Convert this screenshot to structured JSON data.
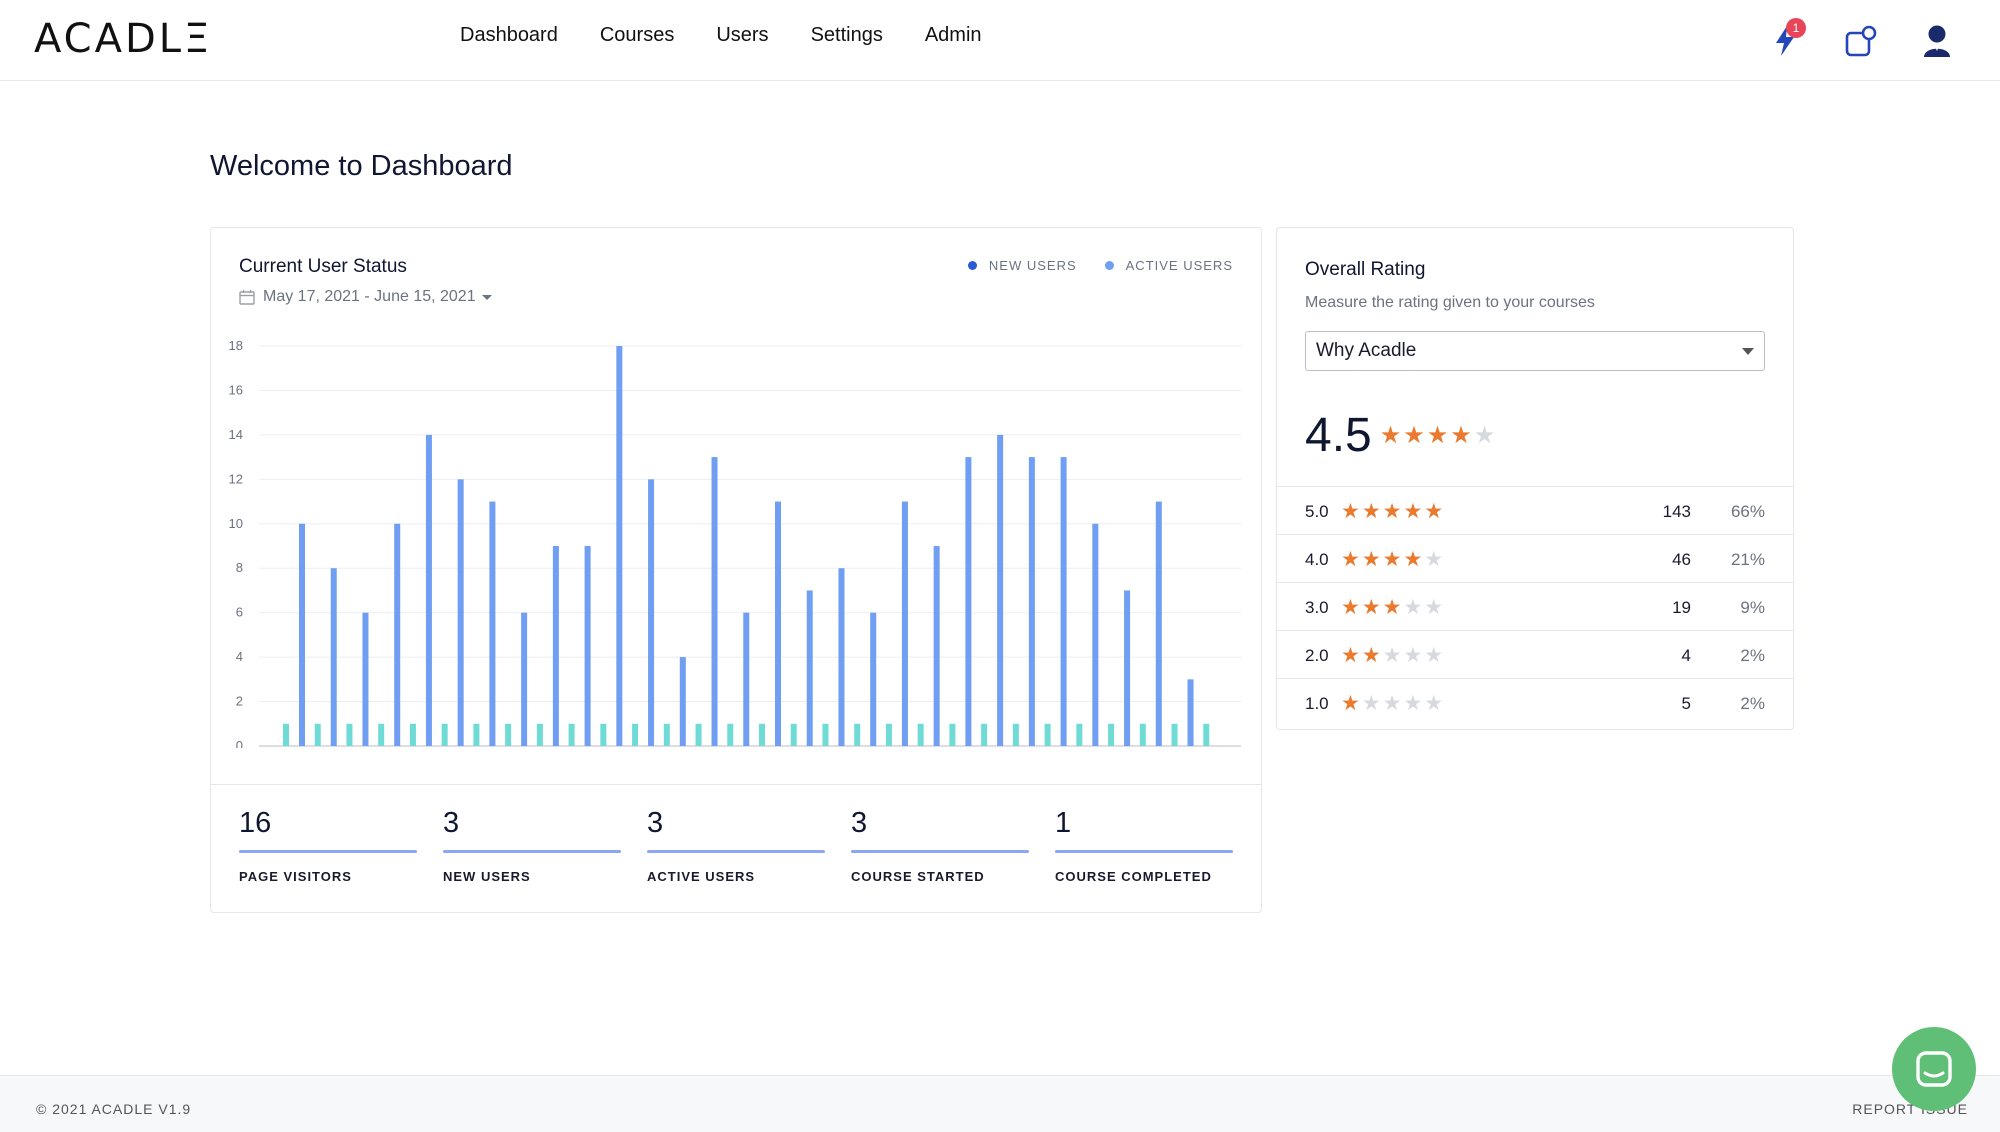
{
  "header": {
    "logo": "ACADLΞ",
    "nav": [
      "Dashboard",
      "Courses",
      "Users",
      "Settings",
      "Admin"
    ],
    "notification_count": "1"
  },
  "page_title": "Welcome to Dashboard",
  "user_status": {
    "title": "Current User Status",
    "date_range": "May 17, 2021 - June 15, 2021",
    "legend": {
      "new_users": "NEW USERS",
      "active_users": "ACTIVE USERS"
    },
    "colors": {
      "new_users": "#6f9ef2",
      "active_users": "#6fdbd6"
    }
  },
  "chart_data": {
    "type": "bar",
    "ylim": [
      0,
      18
    ],
    "yticks": [
      0,
      2,
      4,
      6,
      8,
      10,
      12,
      14,
      16,
      18
    ],
    "series": [
      {
        "name": "ACTIVE USERS",
        "values": [
          1,
          1,
          1,
          1,
          1,
          1,
          1,
          1,
          1,
          1,
          1,
          1,
          1,
          1,
          1,
          1,
          1,
          1,
          1,
          1,
          1,
          1,
          1,
          1,
          1,
          1,
          1,
          1,
          1,
          1
        ]
      },
      {
        "name": "NEW USERS",
        "values": [
          10,
          8,
          6,
          10,
          14,
          12,
          11,
          6,
          9,
          9,
          18,
          12,
          4,
          13,
          6,
          11,
          7,
          8,
          6,
          11,
          9,
          13,
          14,
          13,
          13,
          10,
          7,
          11,
          3,
          0
        ]
      }
    ]
  },
  "stats": [
    {
      "value": "16",
      "label": "PAGE VISITORS"
    },
    {
      "value": "3",
      "label": "NEW USERS"
    },
    {
      "value": "3",
      "label": "ACTIVE USERS"
    },
    {
      "value": "3",
      "label": "COURSE STARTED"
    },
    {
      "value": "1",
      "label": "COURSE COMPLETED"
    }
  ],
  "rating": {
    "title": "Overall Rating",
    "subtitle": "Measure the rating given to your courses",
    "selected_course": "Why Acadle",
    "average": "4.5",
    "average_stars": 4,
    "rows": [
      {
        "label": "5.0",
        "stars": 5,
        "count": "143",
        "pct": "66%"
      },
      {
        "label": "4.0",
        "stars": 4,
        "count": "46",
        "pct": "21%"
      },
      {
        "label": "3.0",
        "stars": 3,
        "count": "19",
        "pct": "9%"
      },
      {
        "label": "2.0",
        "stars": 2,
        "count": "4",
        "pct": "2%"
      },
      {
        "label": "1.0",
        "stars": 1,
        "count": "5",
        "pct": "2%"
      }
    ]
  },
  "footer": {
    "copyright": "© 2021 ACADLE V1.9",
    "report": "REPORT ISSUE"
  }
}
